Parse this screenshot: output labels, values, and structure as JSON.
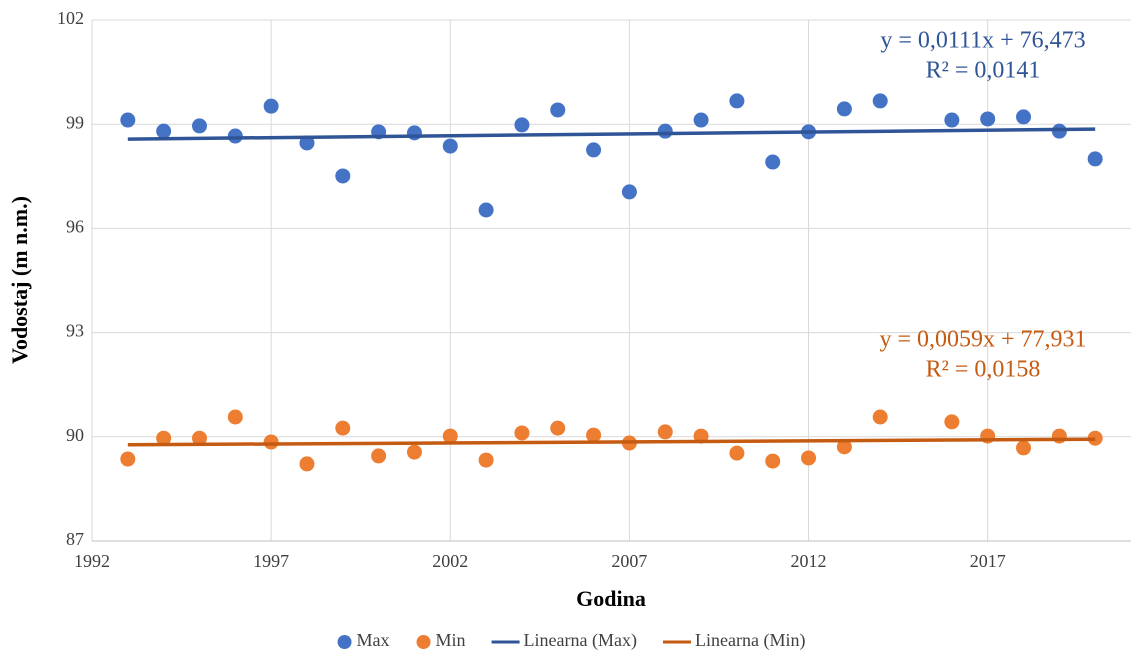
{
  "chart_data": {
    "type": "scatter",
    "x_label": "Godina",
    "y_label": "Vodostaj (m n.m.)",
    "xlim": [
      1992,
      2021
    ],
    "xticks": [
      1992,
      1997,
      2002,
      2007,
      2012,
      2017
    ],
    "ylim": [
      87,
      102
    ],
    "yticks": [
      87,
      90,
      93,
      96,
      99,
      102
    ],
    "grid": true,
    "legend": "bottom",
    "series": [
      {
        "name": "Max",
        "mode": "markers",
        "color": "#4472c4",
        "x": [
          1993,
          1994,
          1995,
          1996,
          1997,
          1998,
          1999,
          2000,
          2001,
          2002,
          2003,
          2004,
          2005,
          2006,
          2007,
          2008,
          2009,
          2010,
          2011,
          2012,
          2013,
          2014,
          2016,
          2017,
          2018,
          2019,
          2020
        ],
        "values": [
          99.12,
          98.8,
          98.95,
          98.66,
          99.52,
          98.46,
          97.51,
          98.78,
          98.75,
          98.37,
          96.53,
          98.98,
          99.41,
          98.26,
          97.05,
          98.8,
          99.12,
          99.67,
          97.91,
          98.78,
          99.44,
          99.67,
          99.12,
          99.15,
          99.21,
          98.8,
          98.0
        ]
      },
      {
        "name": "Min",
        "mode": "markers",
        "color": "#ed7d31",
        "x": [
          1993,
          1994,
          1995,
          1996,
          1997,
          1998,
          1999,
          2000,
          2001,
          2002,
          2003,
          2004,
          2005,
          2006,
          2007,
          2008,
          2009,
          2010,
          2011,
          2012,
          2013,
          2014,
          2016,
          2017,
          2018,
          2019,
          2020
        ],
        "values": [
          89.36,
          89.96,
          89.96,
          90.57,
          89.85,
          89.22,
          90.25,
          89.45,
          89.56,
          90.02,
          89.33,
          90.11,
          90.25,
          90.05,
          89.82,
          90.14,
          90.02,
          89.53,
          89.3,
          89.39,
          89.71,
          90.57,
          90.43,
          90.02,
          89.68,
          90.02,
          89.96
        ]
      },
      {
        "name": "Linearna (Max)",
        "mode": "line",
        "color": "#2f5597",
        "x": [
          1993,
          2020
        ],
        "values": [
          98.57,
          98.86
        ]
      },
      {
        "name": "Linearna (Min)",
        "mode": "line",
        "color": "#c55a11",
        "x": [
          1993,
          2020
        ],
        "values": [
          89.77,
          89.93
        ]
      }
    ],
    "annotations": [
      {
        "lines": [
          "y = 0,0111x + 76,473",
          "R² = 0,0141"
        ],
        "color": "#2f5597"
      },
      {
        "lines": [
          "y = 0,0059x + 77,931",
          "R² = 0,0158"
        ],
        "color": "#c55a11"
      }
    ]
  }
}
